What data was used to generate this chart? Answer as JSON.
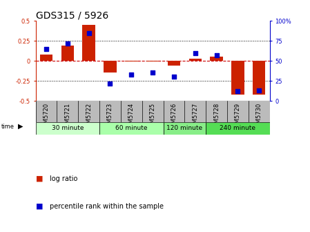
{
  "title": "GDS315 / 5926",
  "samples": [
    "GSM5720",
    "GSM5721",
    "GSM5722",
    "GSM5723",
    "GSM5724",
    "GSM5725",
    "GSM5726",
    "GSM5727",
    "GSM5728",
    "GSM5729",
    "GSM5730"
  ],
  "log_ratio": [
    0.08,
    0.19,
    0.45,
    -0.15,
    -0.01,
    -0.01,
    -0.06,
    0.03,
    0.05,
    -0.42,
    -0.42
  ],
  "percentile": [
    65,
    72,
    85,
    22,
    33,
    35,
    30,
    60,
    57,
    12,
    13
  ],
  "group_boundaries": [
    {
      "start": 0,
      "end": 2,
      "label": "30 minute",
      "color": "#ccffcc"
    },
    {
      "start": 3,
      "end": 5,
      "label": "60 minute",
      "color": "#aaffaa"
    },
    {
      "start": 6,
      "end": 7,
      "label": "120 minute",
      "color": "#88ee88"
    },
    {
      "start": 8,
      "end": 10,
      "label": "240 minute",
      "color": "#55dd55"
    }
  ],
  "bar_color": "#cc2200",
  "dot_color": "#0000cc",
  "ylim": [
    -0.5,
    0.5
  ],
  "y2lim": [
    0,
    100
  ],
  "yticks": [
    -0.5,
    -0.25,
    0.0,
    0.25,
    0.5
  ],
  "y2ticks": [
    0,
    25,
    50,
    75,
    100
  ],
  "hlines": [
    0.25,
    -0.25
  ],
  "hline_zero_color": "#cc0000",
  "background_color": "#ffffff",
  "tick_bg_color": "#bbbbbb",
  "title_fontsize": 10,
  "tick_fontsize": 6,
  "label_fontsize": 7,
  "bar_width": 0.6
}
